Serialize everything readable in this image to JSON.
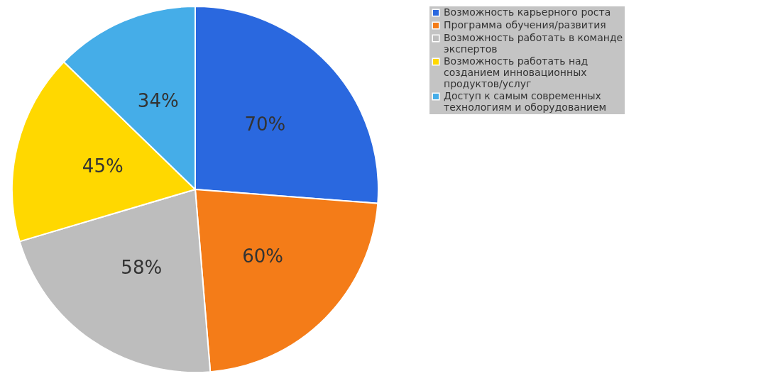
{
  "chart_data": {
    "type": "pie",
    "categories": [
      "Возможность карьерного роста",
      "Программа обучения/развития",
      "Возможность работать в команде экспертов",
      "Возможность работать над созданием инновационных продуктов/услуг",
      "Доступ к самым современных технологиям и оборудованием"
    ],
    "values": [
      70,
      60,
      58,
      45,
      34
    ],
    "colors": [
      "#2a68df",
      "#f47c18",
      "#bdbdbd",
      "#ffd800",
      "#45ade8"
    ],
    "value_labels": [
      "70%",
      "60%",
      "58%",
      "45%",
      "34%"
    ],
    "legend": "right"
  }
}
